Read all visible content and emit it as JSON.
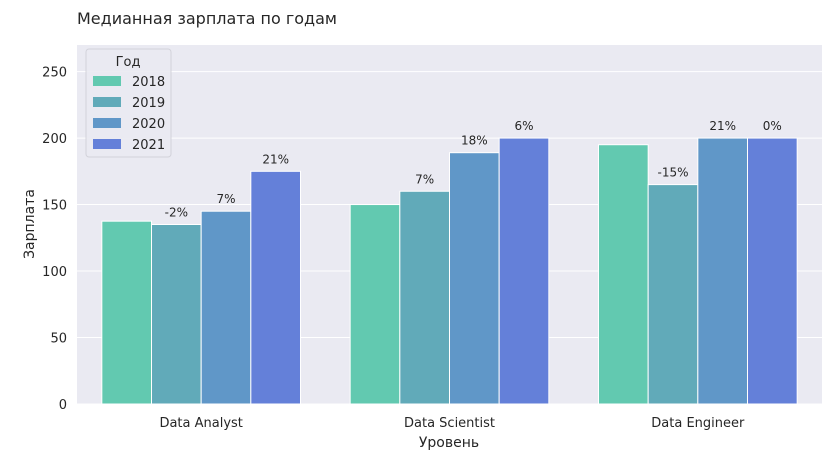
{
  "chart_data": {
    "type": "bar",
    "title": "Медианная зарплата по годам",
    "xlabel": "Уровень",
    "ylabel": "Зарплата",
    "ylim": [
      0,
      270
    ],
    "yticks": [
      0,
      50,
      100,
      150,
      200,
      250
    ],
    "grid": true,
    "categories": [
      "Data Analyst",
      "Data Scientist",
      "Data Engineer"
    ],
    "legend": {
      "title": "Год",
      "placement": "top-left"
    },
    "series": [
      {
        "name": "2018",
        "color": "#62c9b0",
        "values": [
          137.5,
          150,
          195
        ],
        "labels": [
          "",
          "",
          ""
        ]
      },
      {
        "name": "2019",
        "color": "#61aab9",
        "values": [
          135,
          160,
          165
        ],
        "labels": [
          "-2%",
          "7%",
          "-15%"
        ]
      },
      {
        "name": "2020",
        "color": "#6097c8",
        "values": [
          145,
          189,
          200
        ],
        "labels": [
          "7%",
          "18%",
          "21%"
        ]
      },
      {
        "name": "2021",
        "color": "#6480d9",
        "values": [
          175,
          200,
          200
        ],
        "labels": [
          "21%",
          "6%",
          "0%"
        ]
      }
    ]
  }
}
